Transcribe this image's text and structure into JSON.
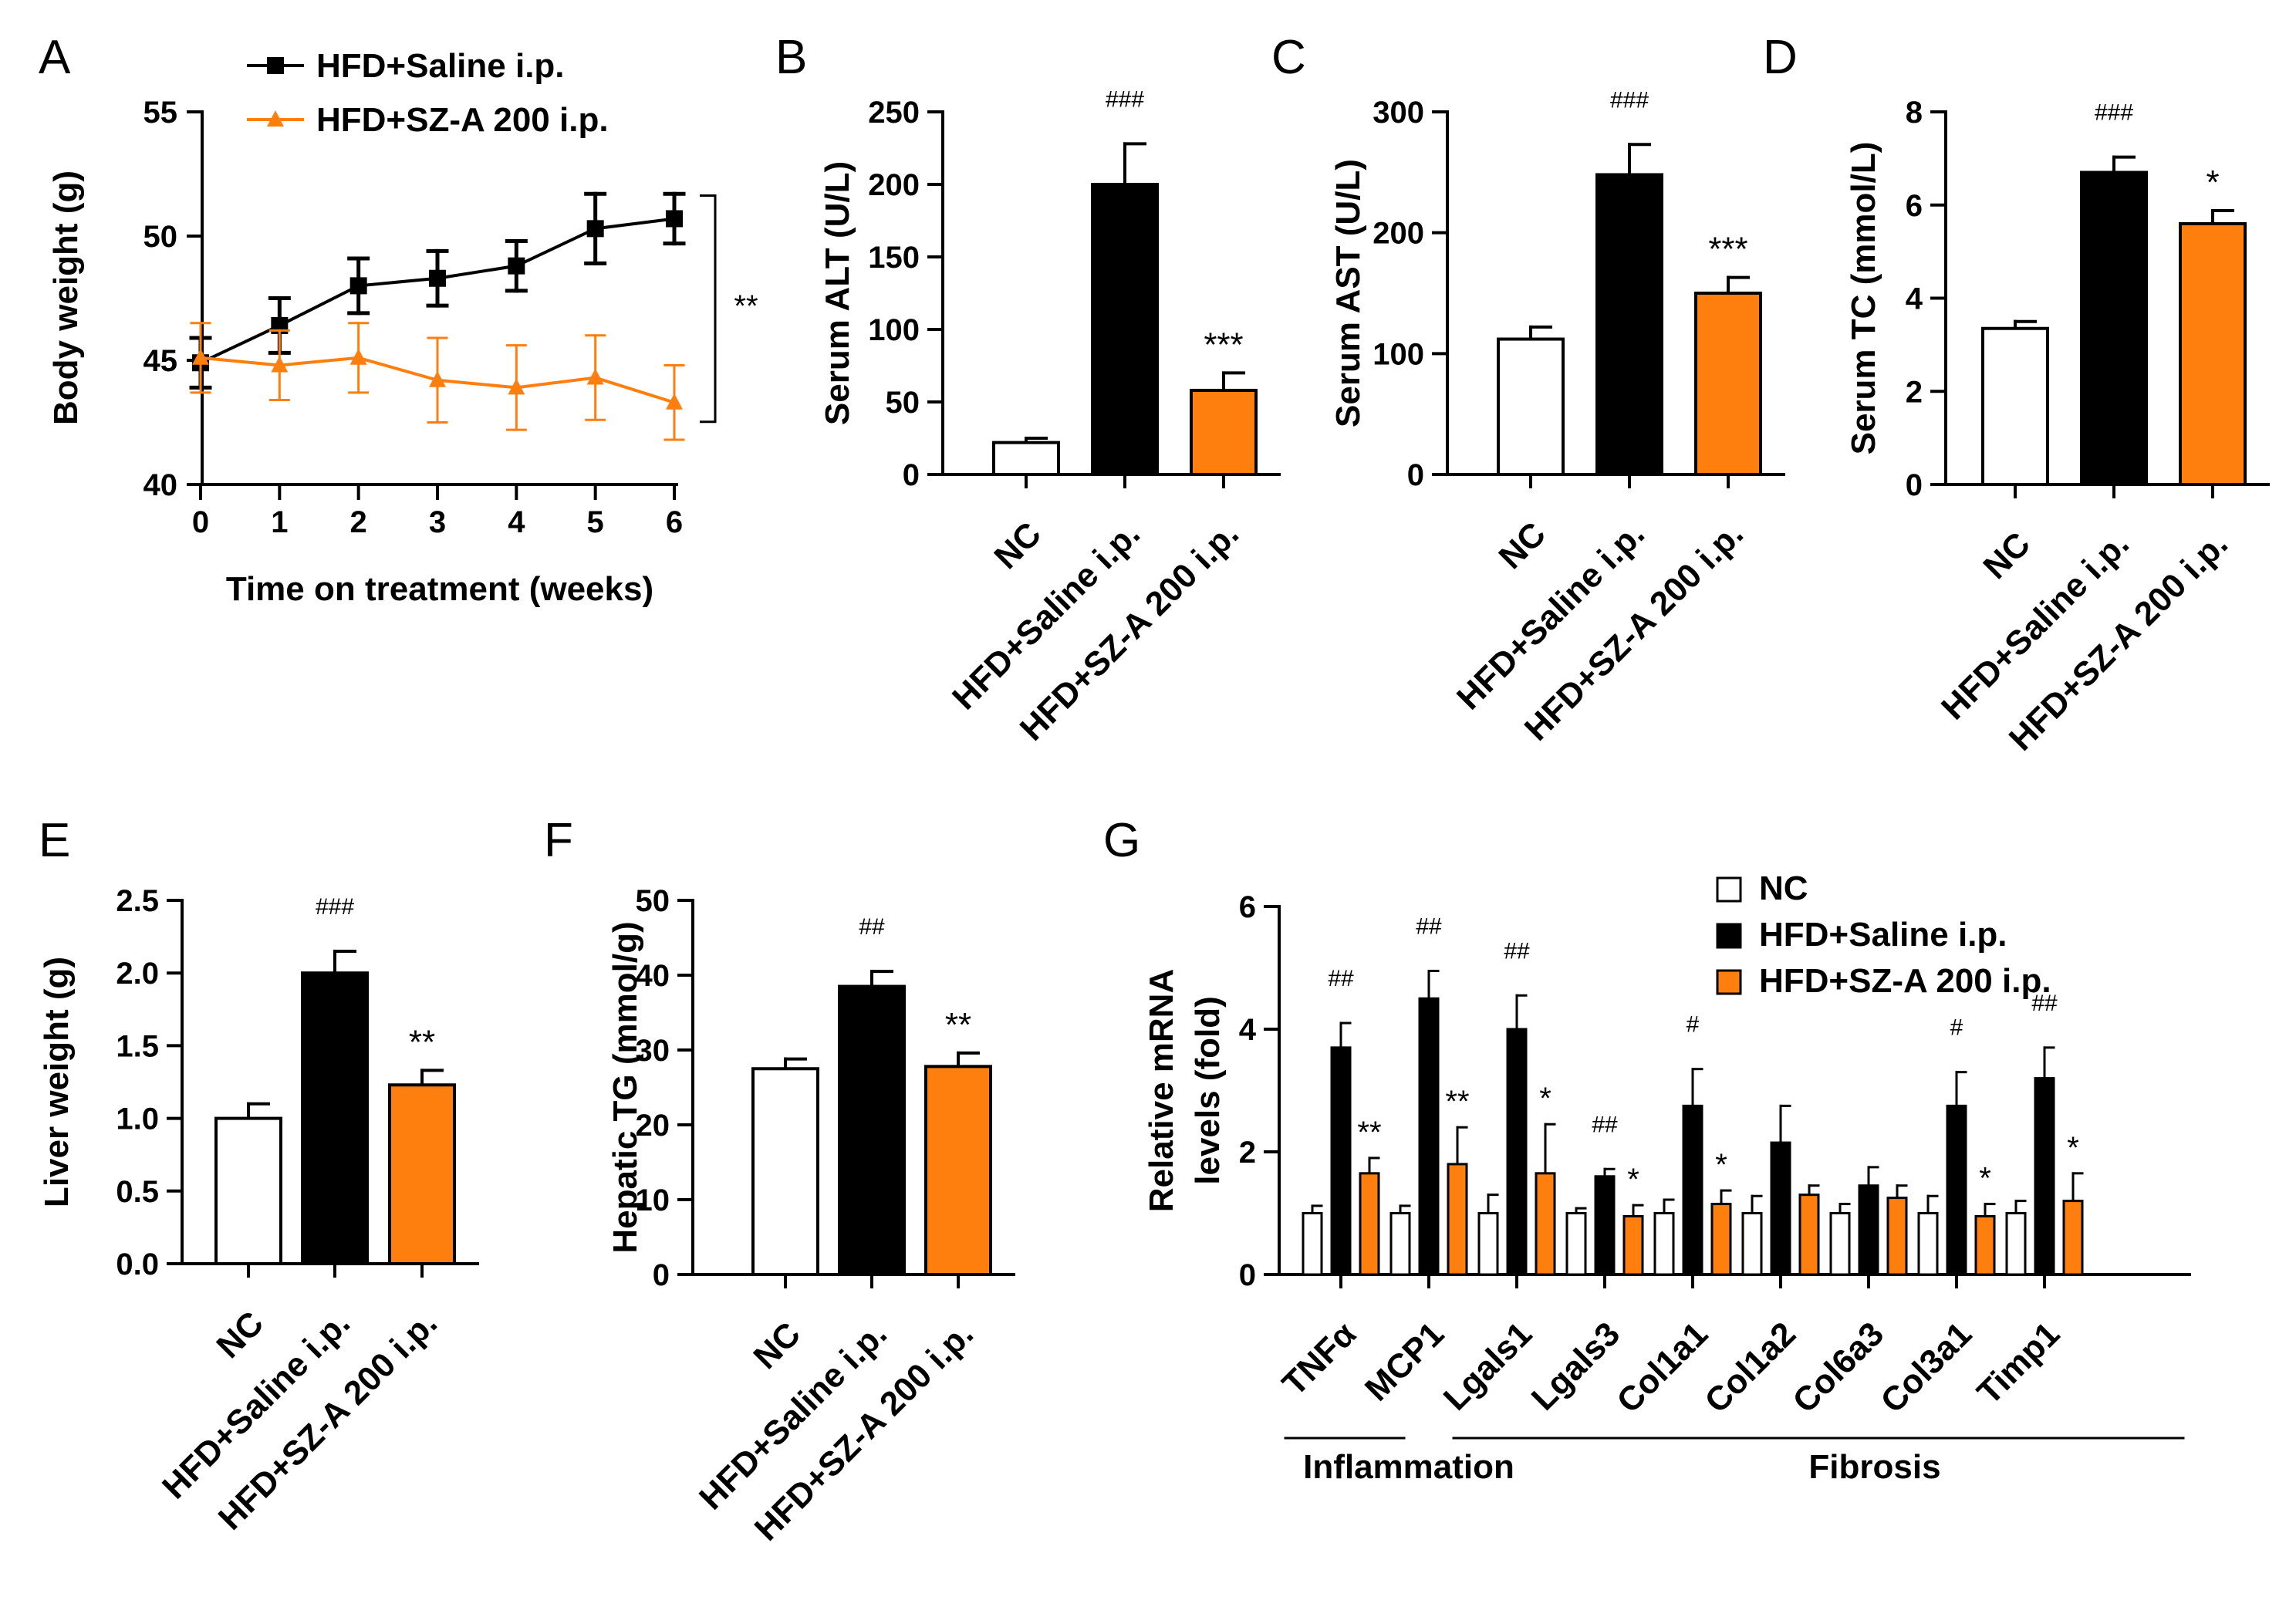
{
  "colors": {
    "hfd": "#000000",
    "sza": "#FF7F0E",
    "nc": "#FFFFFF",
    "axis": "#000000"
  },
  "chart_data": [
    {
      "panel": "A",
      "type": "line",
      "xlabel": "Time on treatment (weeks)",
      "ylabel": "Body weight (g)",
      "x": [
        0,
        1,
        2,
        3,
        4,
        5,
        6
      ],
      "xlim": [
        0,
        6
      ],
      "ylim": [
        40,
        55
      ],
      "yticks": [
        40,
        45,
        50,
        55
      ],
      "series": [
        {
          "name": "HFD+Saline i.p.",
          "color": "#000000",
          "marker": "square",
          "values": [
            44.9,
            46.4,
            48.0,
            48.3,
            48.8,
            50.3,
            50.7
          ],
          "errors": [
            1.0,
            1.1,
            1.1,
            1.1,
            1.0,
            1.4,
            1.0
          ]
        },
        {
          "name": "HFD+SZ-A 200 i.p.",
          "color": "#FF7F0E",
          "marker": "triangle",
          "values": [
            45.1,
            44.8,
            45.1,
            44.2,
            43.9,
            44.3,
            43.3
          ],
          "errors": [
            1.4,
            1.4,
            1.4,
            1.7,
            1.7,
            1.7,
            1.5
          ]
        }
      ],
      "annotations": [
        "**"
      ]
    },
    {
      "panel": "B",
      "type": "bar",
      "ylabel": "Serum ALT (U/L)",
      "categories": [
        "NC",
        "HFD+Saline i.p.",
        "HFD+SZ-A 200 i.p."
      ],
      "values": [
        22,
        200,
        58
      ],
      "errors": [
        3,
        28,
        12
      ],
      "ylim": [
        0,
        250
      ],
      "yticks": [
        0,
        50,
        100,
        150,
        200,
        250
      ],
      "labels": [
        "",
        "###",
        "***"
      ]
    },
    {
      "panel": "C",
      "type": "bar",
      "ylabel": "Serum AST (U/L)",
      "categories": [
        "NC",
        "HFD+Saline i.p.",
        "HFD+SZ-A 200 i.p."
      ],
      "values": [
        112,
        248,
        150
      ],
      "errors": [
        10,
        25,
        13
      ],
      "ylim": [
        0,
        300
      ],
      "yticks": [
        0,
        100,
        200,
        300
      ],
      "labels": [
        "",
        "###",
        "***"
      ]
    },
    {
      "panel": "D",
      "type": "bar",
      "ylabel": "Serum TC (mmol/L)",
      "categories": [
        "NC",
        "HFD+Saline i.p.",
        "HFD+SZ-A 200 i.p."
      ],
      "values": [
        3.35,
        6.7,
        5.6
      ],
      "errors": [
        0.15,
        0.33,
        0.28
      ],
      "ylim": [
        0,
        8
      ],
      "yticks": [
        0,
        2,
        4,
        6,
        8
      ],
      "labels": [
        "",
        "###",
        "*"
      ]
    },
    {
      "panel": "E",
      "type": "bar",
      "ylabel": "Liver weight (g)",
      "categories": [
        "NC",
        "HFD+Saline i.p.",
        "HFD+SZ-A 200 i.p."
      ],
      "values": [
        1.0,
        2.0,
        1.23
      ],
      "errors": [
        0.1,
        0.15,
        0.1
      ],
      "ylim": [
        0,
        2.5
      ],
      "yticks": [
        "0.0",
        "0.5",
        "1.0",
        "1.5",
        "2.0",
        "2.5"
      ],
      "labels": [
        "",
        "###",
        "**"
      ]
    },
    {
      "panel": "F",
      "type": "bar",
      "ylabel": "Hepatic TG (mmol/g)",
      "categories": [
        "NC",
        "HFD+Saline i.p.",
        "HFD+SZ-A 200 i.p."
      ],
      "values": [
        27.5,
        38.5,
        27.8
      ],
      "errors": [
        1.3,
        2.0,
        1.8
      ],
      "ylim": [
        0,
        50
      ],
      "yticks": [
        0,
        10,
        20,
        30,
        40,
        50
      ],
      "labels": [
        "",
        "##",
        "**"
      ]
    },
    {
      "panel": "G",
      "type": "bar",
      "ylabel": "Relative mRNA levels (fold)",
      "ylabel_lines": [
        "Relative mRNA",
        "levels  (fold)"
      ],
      "categories": [
        "TNFα",
        "MCP1",
        "Lgals1",
        "Lgals3",
        "Col1a1",
        "Col1a2",
        "Col6a3",
        "Col3a1",
        "Timp1"
      ],
      "ylim": [
        0,
        6
      ],
      "yticks": [
        0,
        2,
        4,
        6
      ],
      "legend": [
        "NC",
        "HFD+Saline i.p.",
        "HFD+SZ-A 200 i.p."
      ],
      "series": [
        {
          "name": "NC",
          "values": [
            1.0,
            1.0,
            1.0,
            1.0,
            1.0,
            1.0,
            1.0,
            1.0,
            1.0
          ],
          "errors": [
            0.12,
            0.12,
            0.3,
            0.08,
            0.22,
            0.28,
            0.15,
            0.28,
            0.2
          ]
        },
        {
          "name": "HFD+Saline i.p.",
          "values": [
            3.7,
            4.5,
            4.0,
            1.6,
            2.75,
            2.15,
            1.45,
            2.75,
            3.2
          ],
          "errors": [
            0.4,
            0.45,
            0.55,
            0.12,
            0.6,
            0.6,
            0.3,
            0.55,
            0.5
          ],
          "labels": [
            "##",
            "##",
            "##",
            "##",
            "#",
            "",
            "",
            "#",
            "##"
          ]
        },
        {
          "name": "HFD+SZ-A 200 i.p.",
          "values": [
            1.65,
            1.8,
            1.65,
            0.95,
            1.15,
            1.3,
            1.25,
            0.95,
            1.2
          ],
          "errors": [
            0.25,
            0.6,
            0.8,
            0.18,
            0.22,
            0.15,
            0.2,
            0.2,
            0.45
          ],
          "labels": [
            "**",
            "**",
            "*",
            "*",
            "*",
            "",
            "",
            "*",
            "*"
          ]
        }
      ],
      "groups": [
        {
          "label": "Inflammation"
        },
        {
          "label": "Fibrosis"
        }
      ]
    }
  ],
  "panel_labels": [
    "A",
    "B",
    "C",
    "D",
    "E",
    "F",
    "G"
  ]
}
